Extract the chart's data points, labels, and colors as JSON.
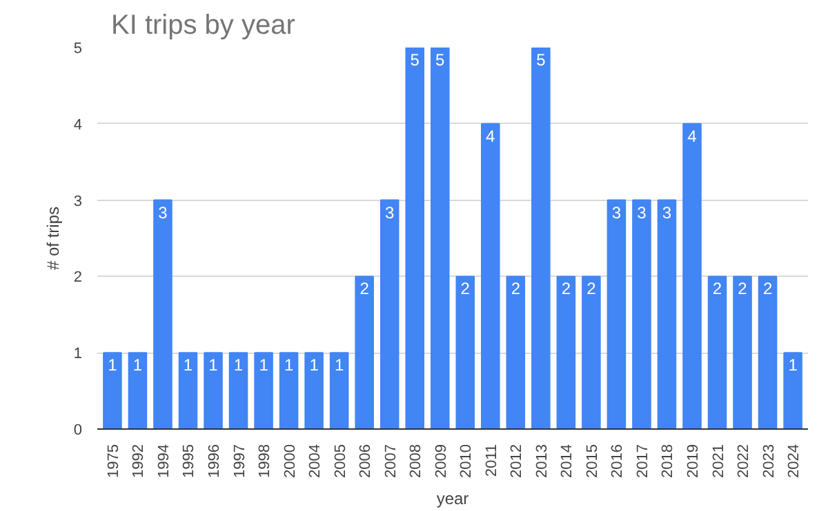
{
  "chart_data": {
    "type": "bar",
    "title": "KI trips by year",
    "xlabel": "year",
    "ylabel": "# of trips",
    "categories": [
      "1975",
      "1992",
      "1994",
      "1995",
      "1996",
      "1997",
      "1998",
      "2000",
      "2004",
      "2005",
      "2006",
      "2007",
      "2008",
      "2009",
      "2010",
      "2011",
      "2012",
      "2013",
      "2014",
      "2015",
      "2016",
      "2017",
      "2018",
      "2019",
      "2021",
      "2022",
      "2023",
      "2024"
    ],
    "values": [
      1,
      1,
      3,
      1,
      1,
      1,
      1,
      1,
      1,
      1,
      2,
      3,
      5,
      5,
      2,
      4,
      2,
      5,
      2,
      2,
      3,
      3,
      3,
      4,
      2,
      2,
      2,
      1
    ],
    "color": "#4285f4",
    "ylim": [
      0,
      5
    ],
    "yticks": [
      0,
      1,
      2,
      3,
      4,
      5
    ],
    "grid": "y",
    "data_labels": true
  }
}
